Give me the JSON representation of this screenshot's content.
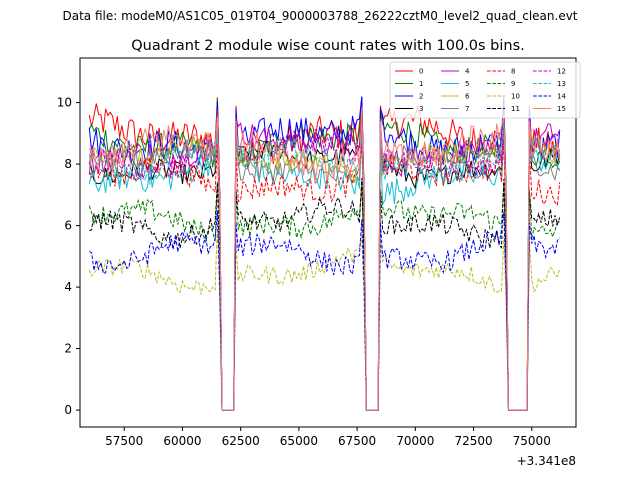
{
  "header": {
    "file_label": "Data file: modeM0/AS1C05_019T04_9000003788_26222cztM0_level2_quad_clean.evt"
  },
  "chart_data": {
    "type": "line",
    "title": "Quadrant 2 module wise count rates with 100.0s bins.",
    "xlabel": "",
    "ylabel": "",
    "x_offset_label": "+3.341e8",
    "x_offset": 334100000,
    "xlim": [
      55600,
      76900
    ],
    "ylim": [
      -0.55,
      11.45
    ],
    "xticks": [
      57500,
      60000,
      62500,
      65000,
      67500,
      70000,
      72500,
      75000
    ],
    "xtick_labels": [
      "57500",
      "60000",
      "62500",
      "65000",
      "67500",
      "70000",
      "72500",
      "75000"
    ],
    "yticks": [
      0,
      2,
      4,
      6,
      8,
      10
    ],
    "ytick_labels": [
      "0",
      "2",
      "4",
      "6",
      "8",
      "10"
    ],
    "bin_seconds": 100,
    "x_start": 56000,
    "x_end": 76200,
    "gaps": [
      {
        "from": 61700,
        "to": 62200,
        "spike": 61500
      },
      {
        "from": 67900,
        "to": 68400,
        "spike": 67700
      },
      {
        "from": 74000,
        "to": 74800,
        "spike": 73800
      }
    ],
    "legend": {
      "location": "top-right",
      "columns": 4
    },
    "series": [
      {
        "name": "0",
        "color": "#ff0000",
        "style": "solid",
        "mean": 8.9,
        "amp": 0.55
      },
      {
        "name": "1",
        "color": "#008000",
        "style": "solid",
        "mean": 8.7,
        "amp": 0.45
      },
      {
        "name": "2",
        "color": "#0000ff",
        "style": "solid",
        "mean": 8.8,
        "amp": 0.5
      },
      {
        "name": "3",
        "color": "#000000",
        "style": "solid",
        "mean": 8.0,
        "amp": 0.35
      },
      {
        "name": "4",
        "color": "#bf00bf",
        "style": "solid",
        "mean": 8.5,
        "amp": 0.4
      },
      {
        "name": "5",
        "color": "#17becf",
        "style": "solid",
        "mean": 7.6,
        "amp": 0.45
      },
      {
        "name": "6",
        "color": "#bcbd22",
        "style": "solid",
        "mean": 8.2,
        "amp": 0.35
      },
      {
        "name": "7",
        "color": "#7f7f7f",
        "style": "solid",
        "mean": 8.0,
        "amp": 0.35
      },
      {
        "name": "8",
        "color": "#ff0000",
        "style": "dashed",
        "mean": 7.5,
        "amp": 0.4
      },
      {
        "name": "9",
        "color": "#008000",
        "style": "dashed",
        "mean": 6.2,
        "amp": 0.35
      },
      {
        "name": "10",
        "color": "#bcbd22",
        "style": "dashed",
        "mean": 4.5,
        "amp": 0.3
      },
      {
        "name": "11",
        "color": "#000000",
        "style": "dashed",
        "mean": 6.1,
        "amp": 0.35
      },
      {
        "name": "12",
        "color": "#bf00bf",
        "style": "dashed",
        "mean": 8.3,
        "amp": 0.4
      },
      {
        "name": "13",
        "color": "#17becf",
        "style": "dashed",
        "mean": 8.1,
        "amp": 0.4
      },
      {
        "name": "14",
        "color": "#0000ff",
        "style": "dashed",
        "mean": 5.1,
        "amp": 0.35
      },
      {
        "name": "15",
        "color": "#fa8072",
        "style": "solid",
        "mean": 8.4,
        "amp": 0.5
      }
    ]
  }
}
